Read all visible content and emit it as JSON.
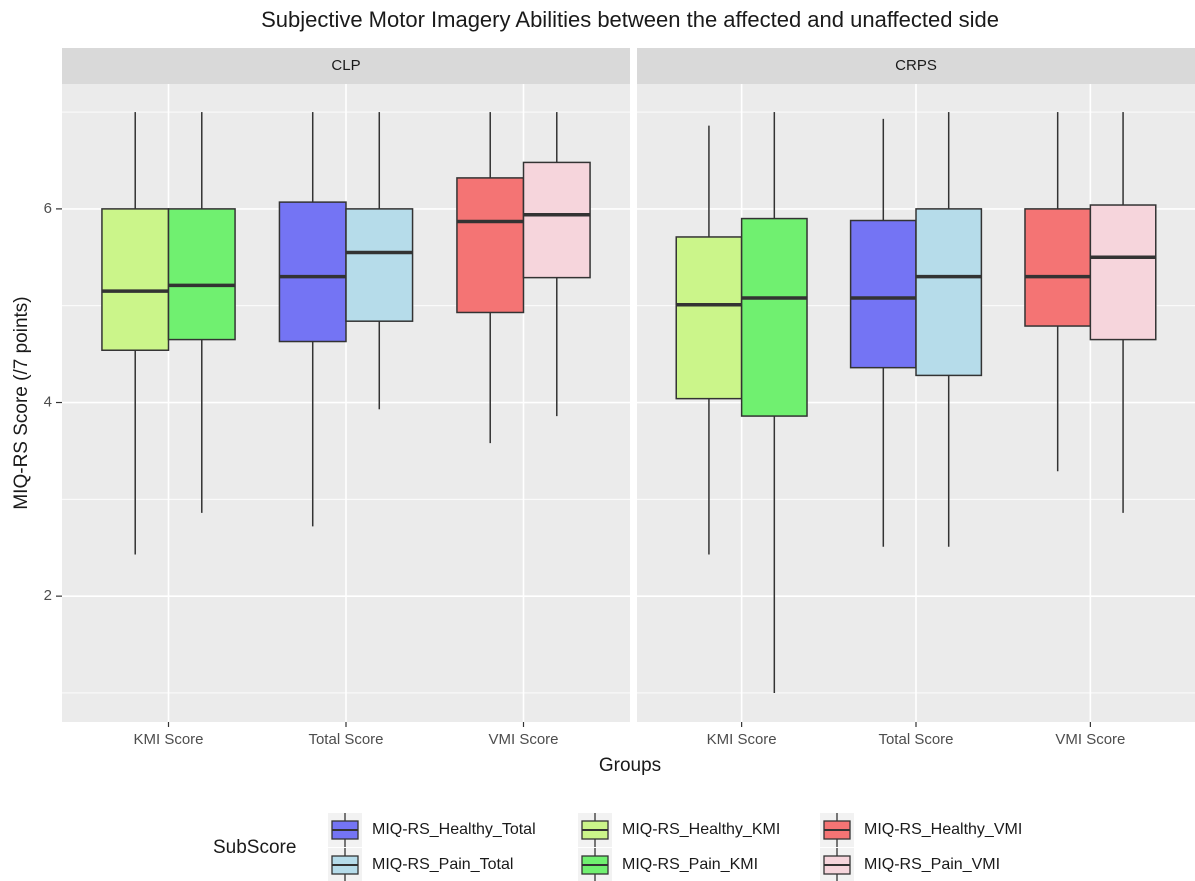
{
  "chart_data": {
    "type": "boxplot",
    "title": "Subjective Motor Imagery Abilities between the affected and unaffected side",
    "x_label": "Groups",
    "y_label": "MIQ-RS Score (/7 points)",
    "facets": [
      "CLP",
      "CRPS"
    ],
    "categories": [
      "KMI Score",
      "Total Score",
      "VMI Score"
    ],
    "ylim": [
      0.7,
      7.29
    ],
    "yticks": [
      2,
      4,
      6
    ],
    "yminor": [
      1,
      3,
      5,
      7
    ],
    "grid": true,
    "legend_title": "SubScore",
    "legend": "bottom",
    "series": [
      {
        "name": "MIQ-RS_Healthy_Total",
        "color": "#7474f4",
        "values": [
          {
            "min": 2.72,
            "q1": 4.63,
            "median": 5.3,
            "q3": 6.07,
            "max": 7
          },
          {
            "min": 2.51,
            "q1": 4.36,
            "median": 5.08,
            "q3": 5.88,
            "max": 6.93
          }
        ]
      },
      {
        "name": "MIQ-RS_Pain_Total",
        "color": "#b6dcea",
        "values": [
          {
            "min": 3.93,
            "q1": 4.84,
            "median": 5.55,
            "q3": 6,
            "max": 7
          },
          {
            "min": 2.51,
            "q1": 4.28,
            "median": 5.3,
            "q3": 6,
            "max": 7
          }
        ]
      },
      {
        "name": "MIQ-RS_Healthy_KMI",
        "color": "#cbf58a",
        "values": [
          {
            "min": 2.43,
            "q1": 4.54,
            "median": 5.15,
            "q3": 6,
            "max": 7
          },
          {
            "min": 2.43,
            "q1": 4.04,
            "median": 5.01,
            "q3": 5.71,
            "max": 6.86
          }
        ]
      },
      {
        "name": "MIQ-RS_Pain_KMI",
        "color": "#70f070",
        "values": [
          {
            "min": 2.86,
            "q1": 4.65,
            "median": 5.21,
            "q3": 6,
            "max": 7
          },
          {
            "min": 1.0,
            "q1": 3.86,
            "median": 5.08,
            "q3": 5.9,
            "max": 7
          }
        ]
      },
      {
        "name": "MIQ-RS_Healthy_VMI",
        "color": "#f47474",
        "values": [
          {
            "min": 3.58,
            "q1": 4.93,
            "median": 5.87,
            "q3": 6.32,
            "max": 7
          },
          {
            "min": 3.29,
            "q1": 4.79,
            "median": 5.3,
            "q3": 6,
            "max": 7
          }
        ]
      },
      {
        "name": "MIQ-RS_Pain_VMI",
        "color": "#f6d5dc",
        "values": [
          {
            "min": 3.86,
            "q1": 5.29,
            "median": 5.94,
            "q3": 6.48,
            "max": 7
          },
          {
            "min": 2.86,
            "q1": 4.65,
            "median": 5.5,
            "q3": 6.04,
            "max": 7
          }
        ]
      }
    ]
  }
}
